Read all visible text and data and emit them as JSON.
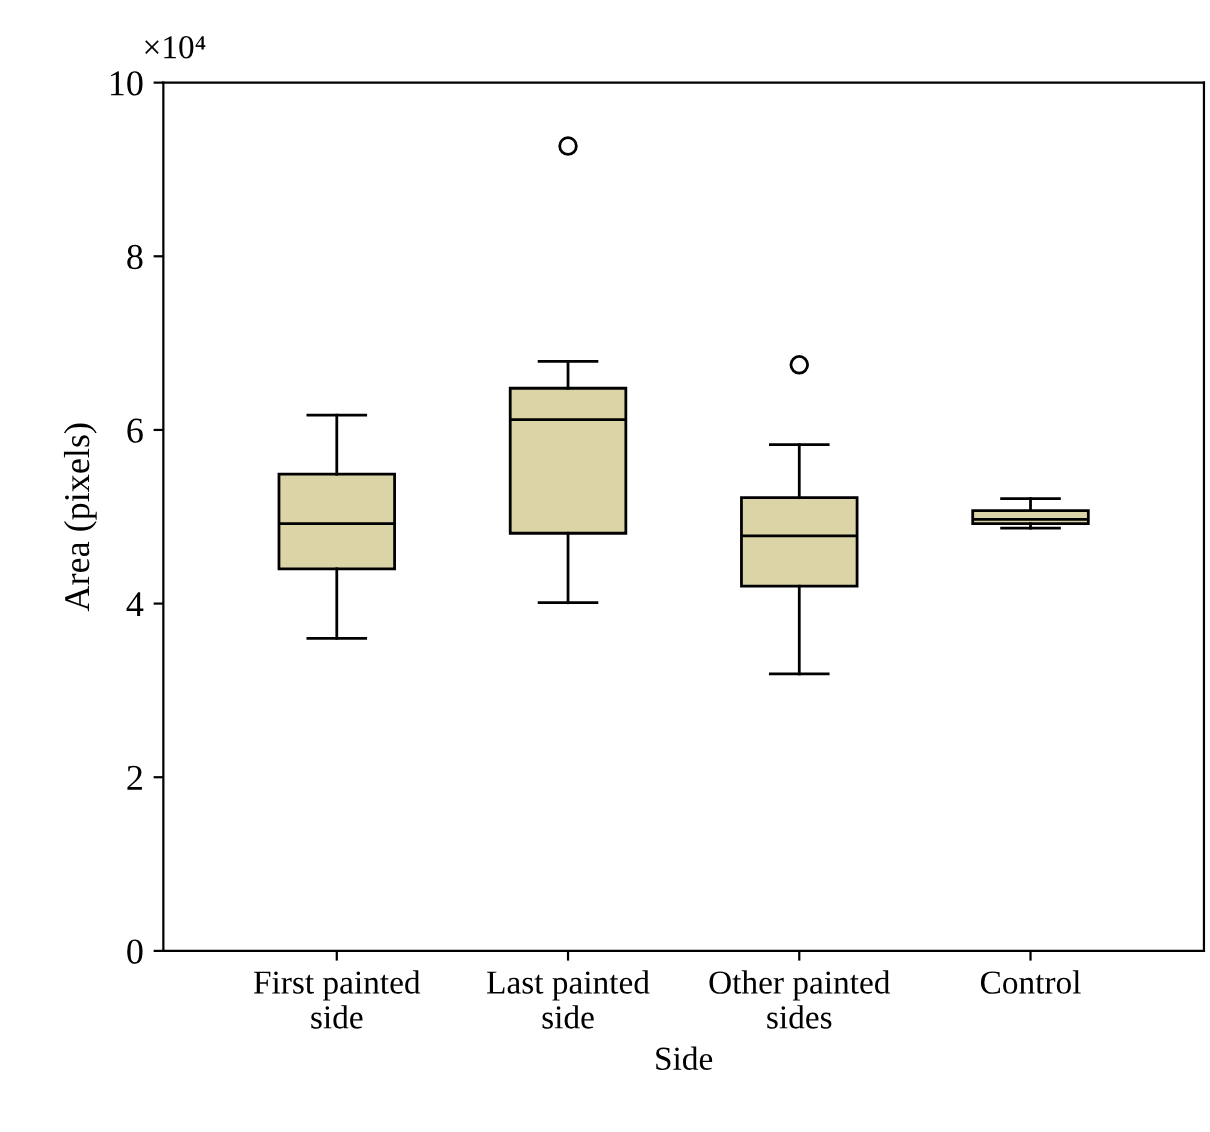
{
  "chart_data": {
    "type": "box",
    "xlabel": "Side",
    "ylabel": "Area (pixels)",
    "categories": [
      "First painted\nside",
      "Last painted\nside",
      "Other painted\nsides",
      "Control"
    ],
    "boxes": [
      {
        "low": 3.6,
        "q1": 4.4,
        "median": 4.92,
        "q3": 5.49,
        "high": 6.17
      },
      {
        "low": 4.01,
        "q1": 4.81,
        "median": 6.12,
        "q3": 6.48,
        "high": 6.79,
        "outliers": [
          9.27
        ]
      },
      {
        "low": 3.19,
        "q1": 4.2,
        "median": 4.78,
        "q3": 5.22,
        "high": 5.83,
        "outliers": [
          6.75
        ]
      },
      {
        "low": 4.87,
        "q1": 4.92,
        "median": 4.97,
        "q3": 5.07,
        "high": 5.21
      }
    ],
    "color": "#dbd4a7",
    "ylim": [
      0,
      10
    ],
    "yticks": [
      0,
      2,
      4,
      6,
      8,
      10
    ],
    "annotations": [
      "×10⁴"
    ],
    "grid": false,
    "legend": false
  }
}
